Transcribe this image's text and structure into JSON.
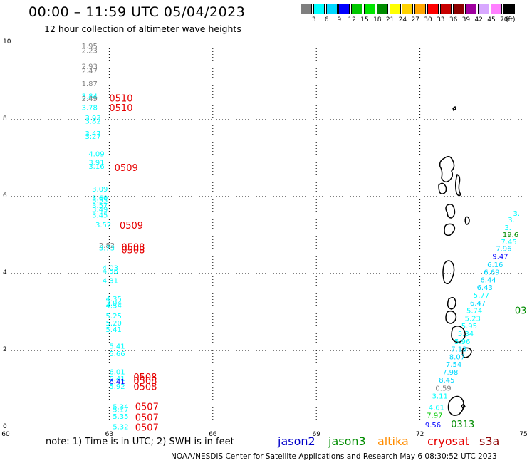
{
  "header": {
    "title": "00:00 – 11:59 UTC 05/04/2023",
    "subtitle": "12 hour collection of altimeter wave heights"
  },
  "color_scale": {
    "labels": [
      "3",
      "6",
      "9",
      "12",
      "15",
      "18",
      "21",
      "24",
      "27",
      "30",
      "33",
      "36",
      "39",
      "42",
      "45",
      "70"
    ],
    "colors": [
      "#7f7f7f",
      "#00ffff",
      "#00d8ff",
      "#0000ff",
      "#00c800",
      "#00e600",
      "#008c00",
      "#ffff00",
      "#ffd200",
      "#ffa500",
      "#ff0000",
      "#c80000",
      "#8c0000",
      "#a000a0",
      "#d8a8ff",
      "#ff80ff",
      "#000000"
    ],
    "unit": "(ft)"
  },
  "footer": {
    "note": "note:  1) Time is in UTC;  2) SWH is in feet",
    "credit": "NOAA/NESDIS Center for Satellite Applications and Research    May  6 08:30:52 UTC 2023"
  },
  "legend": [
    {
      "name": "jason2",
      "color": "#0000c8"
    },
    {
      "name": "jason3",
      "color": "#008c00"
    },
    {
      "name": "altika",
      "color": "#ff8c00"
    },
    {
      "name": "cryosat",
      "color": "#e60000"
    },
    {
      "name": "s3a",
      "color": "#8c0000"
    }
  ],
  "chart_data": {
    "type": "scatter",
    "title": "00:00 – 11:59 UTC 05/04/2023",
    "xlim": [
      60,
      75
    ],
    "ylim": [
      0,
      10
    ],
    "xticks": [
      "60",
      "63",
      "66",
      "69",
      "72",
      "75"
    ],
    "yticks": [
      "0",
      "2",
      "4",
      "6",
      "8",
      "10"
    ],
    "grid": true,
    "labels": [
      {
        "x": 62.2,
        "y": 9.85,
        "text": "1.95",
        "color": "#7f7f7f"
      },
      {
        "x": 62.2,
        "y": 9.73,
        "text": "2.23",
        "color": "#7f7f7f"
      },
      {
        "x": 62.2,
        "y": 9.32,
        "text": "2.93",
        "color": "#7f7f7f"
      },
      {
        "x": 62.2,
        "y": 9.2,
        "text": "2.47",
        "color": "#7f7f7f"
      },
      {
        "x": 62.2,
        "y": 8.87,
        "text": "1.87",
        "color": "#7f7f7f"
      },
      {
        "x": 62.2,
        "y": 8.55,
        "text": "3.84",
        "color": "#00ffff"
      },
      {
        "x": 62.2,
        "y": 8.48,
        "text": "2.49",
        "color": "#7f7f7f"
      },
      {
        "x": 62.2,
        "y": 8.25,
        "text": "3.78",
        "color": "#00ffff"
      },
      {
        "x": 62.3,
        "y": 7.98,
        "text": "3.93",
        "color": "#00ffff"
      },
      {
        "x": 62.3,
        "y": 7.9,
        "text": "3.82",
        "color": "#00ffff"
      },
      {
        "x": 62.3,
        "y": 7.57,
        "text": "3.47",
        "color": "#00ffff"
      },
      {
        "x": 62.3,
        "y": 7.5,
        "text": "3.27",
        "color": "#00ffff"
      },
      {
        "x": 62.4,
        "y": 7.05,
        "text": "4.09",
        "color": "#00ffff"
      },
      {
        "x": 62.4,
        "y": 6.82,
        "text": "3.91",
        "color": "#00ffff"
      },
      {
        "x": 62.4,
        "y": 6.72,
        "text": "3.16",
        "color": "#00ffff"
      },
      {
        "x": 62.5,
        "y": 6.13,
        "text": "3.09",
        "color": "#00ffff"
      },
      {
        "x": 62.5,
        "y": 5.9,
        "text": "3.60",
        "color": "#00ffff"
      },
      {
        "x": 62.5,
        "y": 5.84,
        "text": "3.55",
        "color": "#00ffff"
      },
      {
        "x": 62.5,
        "y": 5.7,
        "text": "3.57",
        "color": "#00ffff"
      },
      {
        "x": 62.5,
        "y": 5.6,
        "text": "3.49",
        "color": "#00ffff"
      },
      {
        "x": 62.5,
        "y": 5.45,
        "text": "3.45",
        "color": "#00ffff"
      },
      {
        "x": 62.6,
        "y": 5.2,
        "text": "3.52",
        "color": "#00ffff"
      },
      {
        "x": 62.7,
        "y": 4.67,
        "text": "2.82",
        "color": "#7f7f7f"
      },
      {
        "x": 62.7,
        "y": 4.6,
        "text": "3.73",
        "color": "#00ffff"
      },
      {
        "x": 62.8,
        "y": 4.08,
        "text": "4.03",
        "color": "#00ffff"
      },
      {
        "x": 62.8,
        "y": 4.0,
        "text": "4.56",
        "color": "#00ffff"
      },
      {
        "x": 62.8,
        "y": 3.75,
        "text": "4.31",
        "color": "#00ffff"
      },
      {
        "x": 62.9,
        "y": 3.28,
        "text": "4.35",
        "color": "#00ffff"
      },
      {
        "x": 62.9,
        "y": 3.17,
        "text": "3.94",
        "color": "#00ffff"
      },
      {
        "x": 62.9,
        "y": 3.1,
        "text": "4.54",
        "color": "#00ffff"
      },
      {
        "x": 62.9,
        "y": 2.83,
        "text": "5.25",
        "color": "#00ffff"
      },
      {
        "x": 62.9,
        "y": 2.65,
        "text": "5.20",
        "color": "#00ffff"
      },
      {
        "x": 62.9,
        "y": 2.48,
        "text": "5.41",
        "color": "#00ffff"
      },
      {
        "x": 63.0,
        "y": 2.05,
        "text": "5.41",
        "color": "#00ffff"
      },
      {
        "x": 63.0,
        "y": 1.85,
        "text": "5.66",
        "color": "#00ffff"
      },
      {
        "x": 63.0,
        "y": 1.38,
        "text": "6.01",
        "color": "#00ffff"
      },
      {
        "x": 63.0,
        "y": 1.2,
        "text": "5.41",
        "color": "#00ffff"
      },
      {
        "x": 63.0,
        "y": 1.13,
        "text": "6.41",
        "color": "#0000ff"
      },
      {
        "x": 63.0,
        "y": 1.0,
        "text": "5.92",
        "color": "#00ffff"
      },
      {
        "x": 63.1,
        "y": 0.47,
        "text": "5.34",
        "color": "#00ffff"
      },
      {
        "x": 63.1,
        "y": 0.4,
        "text": "5.17",
        "color": "#00ffff"
      },
      {
        "x": 63.1,
        "y": 0.22,
        "text": "5.35",
        "color": "#00ffff"
      },
      {
        "x": 63.1,
        "y": -0.05,
        "text": "5.32",
        "color": "#00ffff"
      },
      {
        "x": 63.0,
        "y": 8.47,
        "text": "0510",
        "color": "#e60000",
        "size": 13
      },
      {
        "x": 63.0,
        "y": 8.22,
        "text": "0510",
        "color": "#e60000",
        "size": 13
      },
      {
        "x": 63.15,
        "y": 6.67,
        "text": "0509",
        "color": "#e60000",
        "size": 13
      },
      {
        "x": 63.3,
        "y": 5.17,
        "text": "0509",
        "color": "#e60000",
        "size": 13
      },
      {
        "x": 63.35,
        "y": 4.6,
        "text": "0508",
        "color": "#e60000",
        "size": 13
      },
      {
        "x": 63.35,
        "y": 4.53,
        "text": "0508",
        "color": "#e60000",
        "size": 13
      },
      {
        "x": 63.7,
        "y": 1.22,
        "text": "0508",
        "color": "#e60000",
        "size": 13
      },
      {
        "x": 63.7,
        "y": 1.13,
        "text": "0508",
        "color": "#e60000",
        "size": 13
      },
      {
        "x": 63.7,
        "y": 0.97,
        "text": "0508",
        "color": "#e60000",
        "size": 13
      },
      {
        "x": 63.75,
        "y": 0.45,
        "text": "0507",
        "color": "#e60000",
        "size": 13
      },
      {
        "x": 63.75,
        "y": 0.18,
        "text": "0507",
        "color": "#e60000",
        "size": 13
      },
      {
        "x": 63.75,
        "y": -0.08,
        "text": "0507",
        "color": "#e60000",
        "size": 13
      },
      {
        "x": 74.7,
        "y": 5.5,
        "text": "3.",
        "color": "#00ffff"
      },
      {
        "x": 74.55,
        "y": 5.33,
        "text": "3.",
        "color": "#00ffff"
      },
      {
        "x": 74.45,
        "y": 5.13,
        "text": "3.",
        "color": "#00ffff"
      },
      {
        "x": 74.4,
        "y": 4.94,
        "text": "19.6",
        "color": "#008c00"
      },
      {
        "x": 74.35,
        "y": 4.76,
        "text": "7.45",
        "color": "#00ffff"
      },
      {
        "x": 74.2,
        "y": 4.58,
        "text": "7.96",
        "color": "#00d8ff"
      },
      {
        "x": 74.1,
        "y": 4.38,
        "text": "9.47",
        "color": "#0000ff"
      },
      {
        "x": 73.95,
        "y": 4.17,
        "text": "6.16",
        "color": "#00d8ff"
      },
      {
        "x": 73.85,
        "y": 3.97,
        "text": "6.69",
        "color": "#00d8ff"
      },
      {
        "x": 73.75,
        "y": 3.77,
        "text": "6.44",
        "color": "#00d8ff"
      },
      {
        "x": 73.65,
        "y": 3.57,
        "text": "6.43",
        "color": "#00d8ff"
      },
      {
        "x": 73.55,
        "y": 3.37,
        "text": "5.77",
        "color": "#00ffff"
      },
      {
        "x": 73.45,
        "y": 3.17,
        "text": "6.47",
        "color": "#00d8ff"
      },
      {
        "x": 73.35,
        "y": 2.97,
        "text": "5.74",
        "color": "#00ffff"
      },
      {
        "x": 74.75,
        "y": 2.95,
        "text": "03",
        "color": "#008c00",
        "size": 13
      },
      {
        "x": 73.3,
        "y": 2.77,
        "text": "5.23",
        "color": "#00ffff"
      },
      {
        "x": 73.2,
        "y": 2.57,
        "text": "5.95",
        "color": "#00ffff"
      },
      {
        "x": 73.1,
        "y": 2.37,
        "text": "5.34",
        "color": "#00ffff"
      },
      {
        "x": 73.0,
        "y": 2.17,
        "text": "5.96",
        "color": "#00ffff"
      },
      {
        "x": 72.9,
        "y": 1.97,
        "text": "7.13",
        "color": "#00d8ff"
      },
      {
        "x": 72.85,
        "y": 1.77,
        "text": "8.07",
        "color": "#00d8ff"
      },
      {
        "x": 72.75,
        "y": 1.57,
        "text": "7.54",
        "color": "#00d8ff"
      },
      {
        "x": 72.65,
        "y": 1.37,
        "text": "7.98",
        "color": "#00d8ff"
      },
      {
        "x": 72.55,
        "y": 1.17,
        "text": "8.45",
        "color": "#00d8ff"
      },
      {
        "x": 72.45,
        "y": 0.95,
        "text": "0.59",
        "color": "#7f7f7f"
      },
      {
        "x": 72.35,
        "y": 0.75,
        "text": "3.11",
        "color": "#00ffff"
      },
      {
        "x": 72.25,
        "y": 0.45,
        "text": "4.61",
        "color": "#00ffff"
      },
      {
        "x": 72.2,
        "y": 0.25,
        "text": "7.97",
        "color": "#00c800"
      },
      {
        "x": 72.15,
        "y": 0.0,
        "text": "9.56",
        "color": "#0000ff"
      },
      {
        "x": 72.9,
        "y": 0.0,
        "text": "0313",
        "color": "#008c00",
        "size": 13
      }
    ]
  }
}
